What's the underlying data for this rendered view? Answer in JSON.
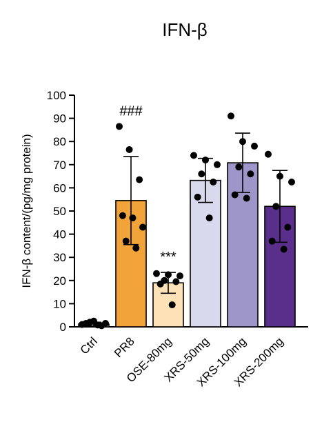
{
  "chart_data": {
    "type": "bar",
    "title": "IFN-β",
    "ylabel": "IFN-β content/(pg/mg protein)",
    "xlabel": "",
    "ylim": [
      0,
      100
    ],
    "yticks": [
      0,
      10,
      20,
      30,
      40,
      50,
      60,
      70,
      80,
      90,
      100
    ],
    "grid": false,
    "categories": [
      "Ctrl",
      "PR8",
      "OSE-80mg",
      "XRS-50mg",
      "XRS-100mg",
      "XRS-200mg"
    ],
    "values": [
      1.2,
      54.5,
      19.0,
      63.2,
      70.8,
      52.0
    ],
    "error": [
      0.8,
      19.0,
      4.5,
      9.5,
      12.8,
      15.5
    ],
    "colors": [
      "#ffffff",
      "#f2a33a",
      "#fde2b8",
      "#d9d9ee",
      "#9e95c8",
      "#5a2f8c"
    ],
    "points": [
      [
        1.0,
        2.5,
        1.5,
        2.0,
        0.5,
        1.5,
        0.8
      ],
      [
        86.5,
        76.5,
        63.5,
        48.0,
        47.0,
        43.0,
        37.0,
        34.0
      ],
      [
        23.0,
        22.5,
        22.0,
        20.0,
        19.5,
        18.5,
        9.5
      ],
      [
        74.0,
        72.0,
        70.0,
        66.0,
        62.5,
        56.0,
        47.0
      ],
      [
        91.0,
        80.0,
        78.0,
        69.0,
        66.0,
        57.0,
        55.5
      ],
      [
        74.5,
        65.0,
        62.5,
        52.0,
        43.0,
        37.0,
        33.5
      ]
    ],
    "annotations": [
      {
        "category": "PR8",
        "text": "###"
      },
      {
        "category": "OSE-80mg",
        "text": "***"
      }
    ]
  }
}
